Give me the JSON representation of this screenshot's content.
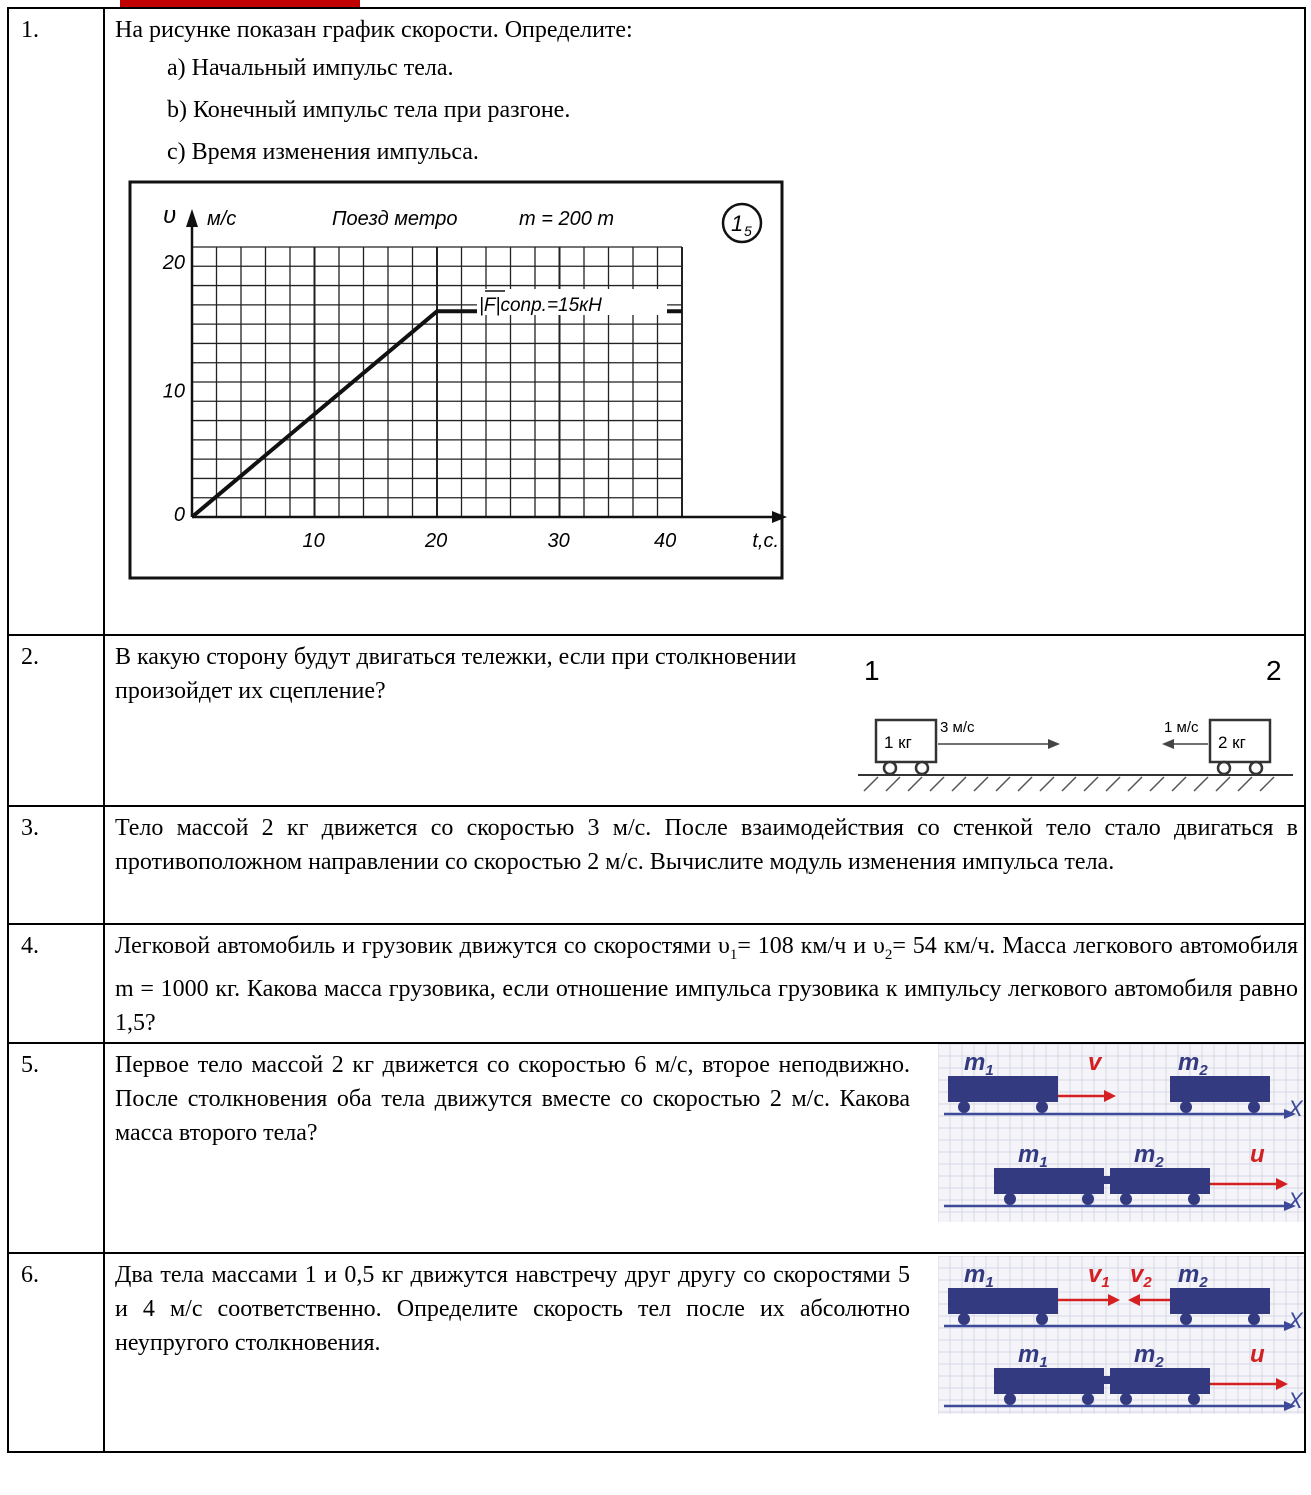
{
  "tasks": [
    {
      "num": "1.",
      "text": "На рисунке показан график скорости. Определите:",
      "items": [
        "a)  Начальный импульс тела.",
        "b)  Конечный импульс тела при разгоне.",
        "c)  Время изменения импульса."
      ],
      "chart_data": {
        "type": "line",
        "title": "Поезд метро",
        "mass_label": "m = 200 т",
        "badge_main": "1",
        "badge_sub": "5",
        "xlabel": "t,c.",
        "ylabel": "м/с",
        "y_symbol": "υ",
        "annotation": "|F|conp.=15кН",
        "x_ticks": [
          "10",
          "20",
          "30",
          "40"
        ],
        "y_ticks": [
          "0",
          "10",
          "20"
        ],
        "xlim": [
          0,
          40
        ],
        "ylim": [
          0,
          21
        ],
        "grid": true,
        "series": [
          {
            "x": [
              0,
              20,
              40
            ],
            "y": [
              0,
              16,
              16
            ]
          }
        ]
      }
    },
    {
      "num": "2.",
      "text": "В какую сторону будут двигаться тележки, если при столкновении произойдет их сцепление?",
      "figure": {
        "label_left": "1",
        "label_right": "2",
        "cart1_mass": "1 кг",
        "cart2_mass": "2 кг",
        "v1": "3 м/с",
        "v2": "1 м/с"
      }
    },
    {
      "num": "3.",
      "text": "Тело массой 2 кг движется со скоростью 3 м/с. После взаимодействия со стенкой тело стало двигаться в противоположном направлении со скоростью 2 м/с. Вычислите модуль изменения импульса тела."
    },
    {
      "num": "4.",
      "text_a": "Легковой автомобиль и грузовик движутся со скоростями υ",
      "sub1": "1",
      "text_b": "= 108 км/ч и υ",
      "sub2": "2",
      "text_c": "= 54 км/ч. Масса легкового автомобиля m = 1000 кг. Какова масса грузовика, если отношение импульса грузовика к импульсу легкового автомобиля равно 1,5?"
    },
    {
      "num": "5.",
      "text": "Первое тело массой 2 кг движется со скоростью 6 м/с, второе неподвижно. После столкновения оба тела движутся вместе со скоростью 2 м/с. Какова масса второго тела?",
      "figure": {
        "m1": "m",
        "m1_sub": "1",
        "m2": "m",
        "m2_sub": "2",
        "v": "v",
        "u": "u",
        "axis": "X"
      }
    },
    {
      "num": "6.",
      "text": "Два тела массами 1 и 0,5 кг движутся навстречу друг другу со скоростями 5 и 4 м/с соответственно. Определите скорость тел после их абсолютно неупругого столкновения.",
      "figure": {
        "m1": "m",
        "m1_sub": "1",
        "m2": "m",
        "m2_sub": "2",
        "v1": "v",
        "v1_sub": "1",
        "v2": "v",
        "v2_sub": "2",
        "u": "u",
        "axis": "X"
      }
    }
  ]
}
